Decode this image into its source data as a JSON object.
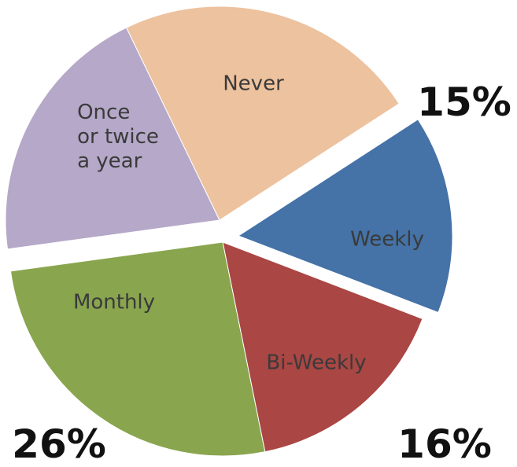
{
  "chart_data": {
    "type": "pie",
    "categories": [
      "Weekly",
      "Bi-Weekly",
      "Monthly",
      "Once\nor twice\na year",
      "Never"
    ],
    "values": [
      15,
      16,
      26,
      20,
      23
    ],
    "value_labels": [
      "15%",
      "16%",
      "26%",
      null,
      null
    ],
    "colors": [
      "#4572a7",
      "#aa4643",
      "#89a54e",
      "#b5a8c8",
      "#edc29e"
    ]
  }
}
